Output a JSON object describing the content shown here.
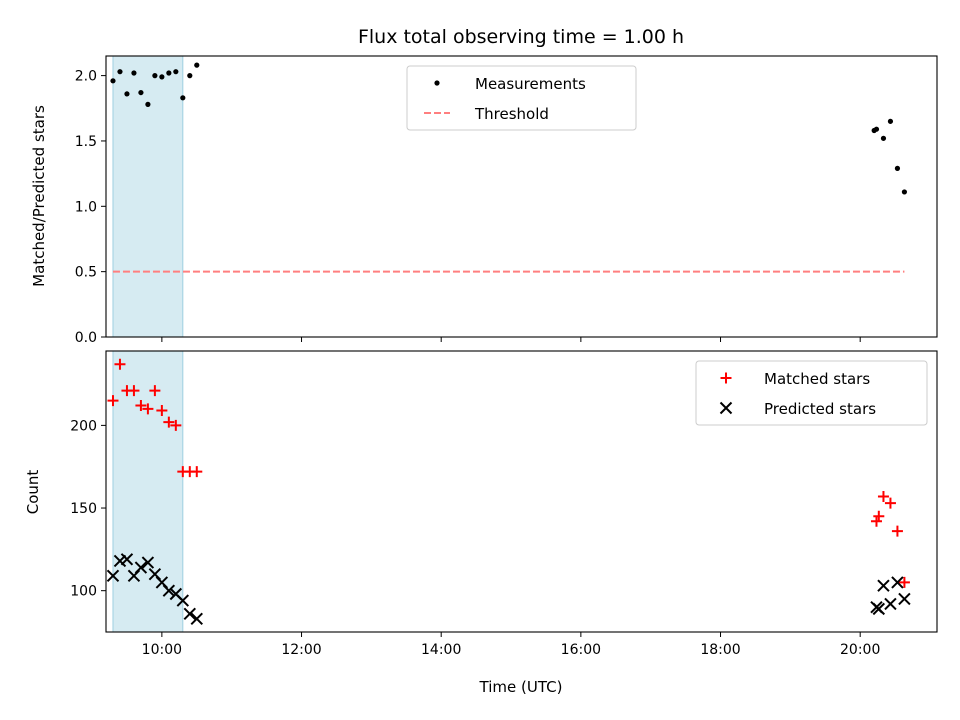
{
  "chart_data": [
    {
      "type": "scatter",
      "title": "Flux total observing time = 1.00 h",
      "xlabel": "",
      "ylabel": "Matched/Predicted stars",
      "xlim": [
        "09:12",
        "21:06"
      ],
      "ylim": [
        0,
        2.15
      ],
      "yticks": [
        "0.0",
        "0.5",
        "1.0",
        "1.5",
        "2.0"
      ],
      "legend_position": "top-center",
      "shaded_span": [
        "09:18",
        "10:18"
      ],
      "series": [
        {
          "name": "Measurements",
          "marker": "dot",
          "color": "#000000",
          "points": [
            {
              "x": "09:18",
              "y": 1.96
            },
            {
              "x": "09:24",
              "y": 2.03
            },
            {
              "x": "09:30",
              "y": 1.86
            },
            {
              "x": "09:36",
              "y": 2.02
            },
            {
              "x": "09:42",
              "y": 1.87
            },
            {
              "x": "09:48",
              "y": 1.78
            },
            {
              "x": "09:54",
              "y": 2.0
            },
            {
              "x": "10:00",
              "y": 1.99
            },
            {
              "x": "10:06",
              "y": 2.02
            },
            {
              "x": "10:12",
              "y": 2.03
            },
            {
              "x": "10:18",
              "y": 1.83
            },
            {
              "x": "10:24",
              "y": 2.0
            },
            {
              "x": "10:30",
              "y": 2.08
            },
            {
              "x": "20:12",
              "y": 1.58
            },
            {
              "x": "20:14",
              "y": 1.59
            },
            {
              "x": "20:20",
              "y": 1.52
            },
            {
              "x": "20:26",
              "y": 1.65
            },
            {
              "x": "20:32",
              "y": 1.29
            },
            {
              "x": "20:38",
              "y": 1.11
            }
          ]
        },
        {
          "name": "Threshold",
          "marker": "dashed-line",
          "color": "#ff7f7f",
          "points": [
            {
              "x": "09:18",
              "y": 0.5
            },
            {
              "x": "20:38",
              "y": 0.5
            }
          ]
        }
      ]
    },
    {
      "type": "scatter",
      "title": "",
      "xlabel": "Time (UTC)",
      "ylabel": "Count",
      "xlim": [
        "09:12",
        "21:06"
      ],
      "ylim": [
        75,
        245
      ],
      "yticks": [
        "100",
        "150",
        "200"
      ],
      "xticks": [
        "10:00",
        "12:00",
        "14:00",
        "16:00",
        "18:00",
        "20:00"
      ],
      "legend_position": "top-right",
      "shaded_span": [
        "09:18",
        "10:18"
      ],
      "series": [
        {
          "name": "Matched stars",
          "marker": "plus",
          "color": "#ff0000",
          "points": [
            {
              "x": "09:18",
              "y": 215
            },
            {
              "x": "09:24",
              "y": 237
            },
            {
              "x": "09:30",
              "y": 221
            },
            {
              "x": "09:36",
              "y": 221
            },
            {
              "x": "09:42",
              "y": 212
            },
            {
              "x": "09:48",
              "y": 210
            },
            {
              "x": "09:54",
              "y": 221
            },
            {
              "x": "10:00",
              "y": 209
            },
            {
              "x": "10:06",
              "y": 202
            },
            {
              "x": "10:12",
              "y": 200
            },
            {
              "x": "10:18",
              "y": 172
            },
            {
              "x": "10:24",
              "y": 172
            },
            {
              "x": "10:30",
              "y": 172
            },
            {
              "x": "20:14",
              "y": 142
            },
            {
              "x": "20:16",
              "y": 145
            },
            {
              "x": "20:20",
              "y": 157
            },
            {
              "x": "20:26",
              "y": 153
            },
            {
              "x": "20:32",
              "y": 136
            },
            {
              "x": "20:38",
              "y": 105
            }
          ]
        },
        {
          "name": "Predicted stars",
          "marker": "cross",
          "color": "#000000",
          "points": [
            {
              "x": "09:18",
              "y": 109
            },
            {
              "x": "09:24",
              "y": 118
            },
            {
              "x": "09:30",
              "y": 119
            },
            {
              "x": "09:36",
              "y": 109
            },
            {
              "x": "09:42",
              "y": 114
            },
            {
              "x": "09:48",
              "y": 117
            },
            {
              "x": "09:54",
              "y": 110
            },
            {
              "x": "10:00",
              "y": 105
            },
            {
              "x": "10:06",
              "y": 100
            },
            {
              "x": "10:12",
              "y": 98
            },
            {
              "x": "10:18",
              "y": 94
            },
            {
              "x": "10:24",
              "y": 86
            },
            {
              "x": "10:30",
              "y": 83
            },
            {
              "x": "20:14",
              "y": 90
            },
            {
              "x": "20:16",
              "y": 89
            },
            {
              "x": "20:20",
              "y": 103
            },
            {
              "x": "20:26",
              "y": 92
            },
            {
              "x": "20:32",
              "y": 105
            },
            {
              "x": "20:38",
              "y": 95
            }
          ]
        }
      ]
    }
  ]
}
